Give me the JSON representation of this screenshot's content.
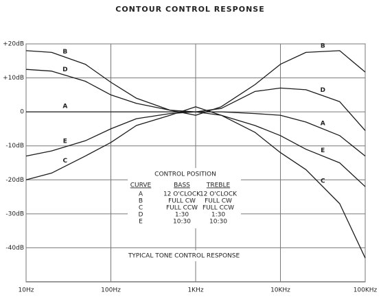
{
  "chart_data": {
    "type": "line",
    "title": "CONTOUR CONTROL RESPONSE",
    "x": [
      10,
      20,
      50,
      100,
      200,
      500,
      1000,
      2000,
      5000,
      10000,
      20000,
      50000,
      100000
    ],
    "series": [
      {
        "name": "A",
        "color": "#1a1a1a",
        "values": [
          0,
          0,
          0,
          0,
          0,
          0,
          0,
          0,
          -0.5,
          -1,
          -3,
          -7,
          -13
        ]
      },
      {
        "name": "B",
        "color": "#1a1a1a",
        "values": [
          18,
          17.5,
          14,
          8.7,
          4,
          0.5,
          -1,
          1.5,
          8,
          14,
          17.5,
          18,
          11.7
        ]
      },
      {
        "name": "C",
        "color": "#1a1a1a",
        "values": [
          -20,
          -18,
          -13,
          -9,
          -4,
          -1,
          1.5,
          -1,
          -6,
          -12,
          -17,
          -27,
          -43
        ]
      },
      {
        "name": "D",
        "color": "#1a1a1a",
        "values": [
          12.5,
          12,
          9,
          5,
          2.5,
          0.5,
          0,
          1,
          6,
          7,
          6.5,
          3,
          -5.5
        ]
      },
      {
        "name": "E",
        "color": "#1a1a1a",
        "values": [
          -13,
          -11.5,
          -8.5,
          -5,
          -2,
          -0.5,
          0,
          -1,
          -4,
          -7,
          -11,
          -15,
          -22
        ]
      }
    ],
    "xlim": [
      10,
      100000
    ],
    "log_x": true,
    "xticks": [
      {
        "value": 10,
        "label": "10Hz"
      },
      {
        "value": 100,
        "label": "100Hz"
      },
      {
        "value": 1000,
        "label": "1KHz"
      },
      {
        "value": 10000,
        "label": "10KHz"
      },
      {
        "value": 100000,
        "label": "100KHz"
      }
    ],
    "ylim": [
      -50,
      20
    ],
    "yticks": [
      {
        "value": 20,
        "label": "+20dB"
      },
      {
        "value": 10,
        "label": "+10dB"
      },
      0,
      {
        "value": -10,
        "label": "-10dB"
      },
      {
        "value": -20,
        "label": "-20dB"
      },
      {
        "value": -30,
        "label": "-30dB"
      },
      {
        "value": -40,
        "label": "-40dB"
      }
    ],
    "grid": true,
    "control_table": {
      "title": "CONTROL POSITION",
      "headers": [
        "CURVE",
        "BASS",
        "TREBLE"
      ],
      "rows": [
        [
          "A",
          "12 O'CLOCK",
          "12 O'CLOCK"
        ],
        [
          "B",
          "FULL CW",
          "FULL CW"
        ],
        [
          "C",
          "FULL CCW",
          "FULL CCW"
        ],
        [
          "D",
          "1:30",
          "1:30"
        ],
        [
          "E",
          "10:30",
          "10:30"
        ]
      ]
    },
    "annotation": "TYPICAL TONE CONTROL RESPONSE"
  }
}
